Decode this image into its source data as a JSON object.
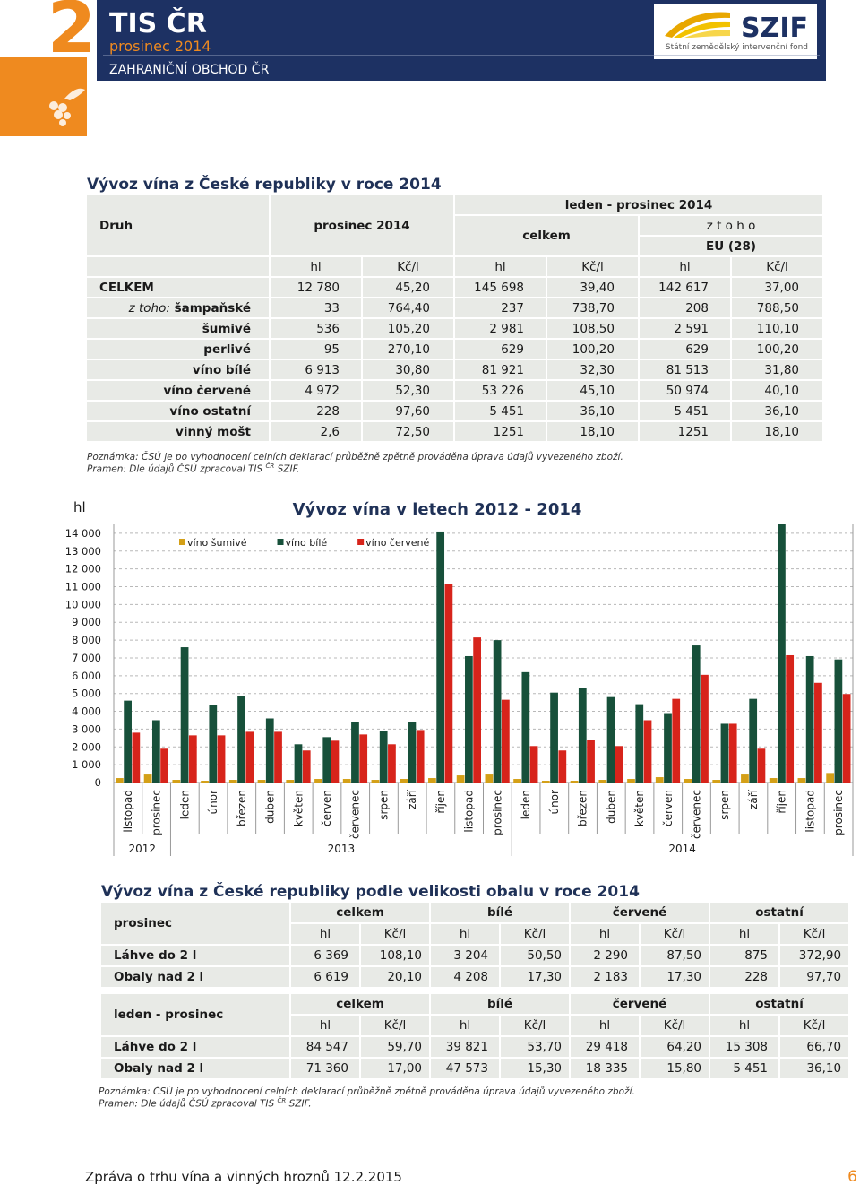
{
  "header": {
    "number": "2",
    "title": "TIS ČR",
    "subtitle": "prosinec 2014",
    "section": "ZAHRANIČNÍ OBCHOD ČR",
    "logo": "SZIF",
    "logo_caption": "Státní zemědělský intervenční fond"
  },
  "table1": {
    "title": "Vývoz vína z České republiky v roce 2014",
    "corner": "Druh",
    "period_month": "prosinec 2014",
    "period_year": "leden - prosinec 2014",
    "total": "celkem",
    "of_which": "z t o h o",
    "eu": "EU (28)",
    "units": [
      "hl",
      "Kč/l",
      "hl",
      "Kč/l",
      "hl",
      "Kč/l"
    ],
    "rows": [
      {
        "label": "CELKEM",
        "cells": [
          "12 780",
          "45,20",
          "145 698",
          "39,40",
          "142 617",
          "37,00"
        ]
      },
      {
        "prefix": "z toho:",
        "label": "šampaňské",
        "cells": [
          "33",
          "764,40",
          "237",
          "738,70",
          "208",
          "788,50"
        ]
      },
      {
        "label": "šumivé",
        "cells": [
          "536",
          "105,20",
          "2 981",
          "108,50",
          "2 591",
          "110,10"
        ]
      },
      {
        "label": "perlivé",
        "cells": [
          "95",
          "270,10",
          "629",
          "100,20",
          "629",
          "100,20"
        ]
      },
      {
        "label": "víno bílé",
        "cells": [
          "6 913",
          "30,80",
          "81 921",
          "32,30",
          "81 513",
          "31,80"
        ]
      },
      {
        "label": "víno červené",
        "cells": [
          "4 972",
          "52,30",
          "53 226",
          "45,10",
          "50 974",
          "40,10"
        ]
      },
      {
        "label": "víno ostatní",
        "cells": [
          "228",
          "97,60",
          "5 451",
          "36,10",
          "5 451",
          "36,10"
        ]
      },
      {
        "label": "vinný mošt",
        "cells": [
          "2,6",
          "72,50",
          "1251",
          "18,10",
          "1251",
          "18,10"
        ]
      }
    ],
    "note": "Poznámka: ČSÚ je po vyhodnocení celních deklarací průběžně zpětně prováděna úprava údajů vyvezeného zboží.",
    "source_before": "Pramen: Dle údajů ČSÚ zpracoval TIS",
    "source_sup": "ČR",
    "source_after": "SZIF."
  },
  "chart_data": {
    "type": "bar",
    "title": "Vývoz vína v letech 2012 - 2014",
    "ylabel": "hl",
    "groups": [
      {
        "label": "2012",
        "categories": [
          "listopad",
          "prosinec"
        ]
      },
      {
        "label": "2013",
        "categories": [
          "leden",
          "únor",
          "březen",
          "duben",
          "květen",
          "červen",
          "červenec",
          "srpen",
          "září",
          "říjen",
          "listopad",
          "prosinec"
        ]
      },
      {
        "label": "2014",
        "categories": [
          "leden",
          "únor",
          "březen",
          "duben",
          "květen",
          "červen",
          "červenec",
          "srpen",
          "září",
          "říjen",
          "listopad",
          "prosinec"
        ]
      }
    ],
    "series": [
      {
        "name": "víno šumivé",
        "color": "#d4a017",
        "values": [
          250,
          450,
          150,
          100,
          150,
          150,
          150,
          200,
          200,
          150,
          200,
          250,
          400,
          450,
          200,
          100,
          100,
          150,
          200,
          300,
          200,
          150,
          450,
          250,
          250,
          536
        ]
      },
      {
        "name": "víno bílé",
        "color": "#17503a",
        "values": [
          4600,
          3500,
          7600,
          4350,
          4850,
          3600,
          2150,
          2550,
          3400,
          2900,
          3400,
          14100,
          7100,
          8000,
          6200,
          5050,
          5300,
          4800,
          4400,
          3900,
          7700,
          3300,
          4700,
          14500,
          7100,
          6913
        ]
      },
      {
        "name": "víno červené",
        "color": "#d7241b",
        "values": [
          2800,
          1900,
          2650,
          2650,
          2850,
          2850,
          1800,
          2350,
          2700,
          2150,
          2950,
          11150,
          8150,
          4650,
          2050,
          1800,
          2400,
          2050,
          3500,
          4700,
          6050,
          3300,
          1900,
          7150,
          5600,
          4972
        ]
      }
    ],
    "ylim": [
      0,
      14500
    ],
    "yticks": [
      0,
      {
        "value": 1000,
        "label": "1 000"
      },
      {
        "value": 2000,
        "label": "2 000"
      },
      {
        "value": 3000,
        "label": "3 000"
      },
      {
        "value": 4000,
        "label": "4 000"
      },
      {
        "value": 5000,
        "label": "5 000"
      },
      {
        "value": 6000,
        "label": "6 000"
      },
      {
        "value": 7000,
        "label": "7 000"
      },
      {
        "value": 8000,
        "label": "8 000"
      },
      {
        "value": 9000,
        "label": "9 000"
      },
      {
        "value": 10000,
        "label": "10 000"
      },
      {
        "value": 11000,
        "label": "11 000"
      },
      {
        "value": 12000,
        "label": "12 000"
      },
      {
        "value": 13000,
        "label": "13 000"
      },
      {
        "value": 14000,
        "label": "14 000"
      }
    ],
    "grid": true,
    "legend": "top-left"
  },
  "table2": {
    "title": "Vývoz vína z České republiky podle velikosti obalu v roce 2014",
    "blocks": [
      {
        "label": "prosinec",
        "groups": [
          "celkem",
          "bílé",
          "červené",
          "ostatní"
        ],
        "units": [
          "hl",
          "Kč/l",
          "hl",
          "Kč/l",
          "hl",
          "Kč/l",
          "hl",
          "Kč/l"
        ],
        "rows": [
          {
            "label": "Láhve do 2 l",
            "cells": [
              "6 369",
              "108,10",
              "3 204",
              "50,50",
              "2 290",
              "87,50",
              "875",
              "372,90"
            ]
          },
          {
            "label": "Obaly nad 2 l",
            "cells": [
              "6 619",
              "20,10",
              "4 208",
              "17,30",
              "2 183",
              "17,30",
              "228",
              "97,70"
            ]
          }
        ]
      },
      {
        "label": "leden - prosinec",
        "groups": [
          "celkem",
          "bílé",
          "červené",
          "ostatní"
        ],
        "units": [
          "hl",
          "Kč/l",
          "hl",
          "Kč/l",
          "hl",
          "Kč/l",
          "hl",
          "Kč/l"
        ],
        "rows": [
          {
            "label": "Láhve do 2 l",
            "cells": [
              "84 547",
              "59,70",
              "39 821",
              "53,70",
              "29 418",
              "64,20",
              "15 308",
              "66,70"
            ]
          },
          {
            "label": "Obaly nad 2 l",
            "cells": [
              "71 360",
              "17,00",
              "47 573",
              "15,30",
              "18 335",
              "15,80",
              "5 451",
              "36,10"
            ]
          }
        ]
      }
    ],
    "note": "Poznámka: ČSÚ je po vyhodnocení celních deklarací průběžně zpětně prováděna úprava údajů vyvezeného zboží.",
    "source_before": "Pramen: Dle údajů ČSÚ zpracoval TIS",
    "source_sup": "ČR",
    "source_after": "SZIF."
  },
  "footer": {
    "text": "Zpráva o trhu vína a vinných hroznů 12.2.2015",
    "page": "6"
  }
}
